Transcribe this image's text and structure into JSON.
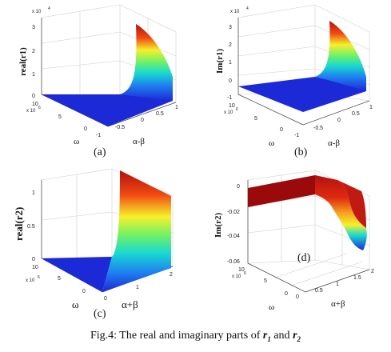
{
  "figure": {
    "caption": {
      "prefix": "Fig.4: The real and imaginary parts of ",
      "r1_main": "r",
      "r1_sub": "1",
      "join": " and ",
      "r2_main": "r",
      "r2_sub": "2"
    },
    "colors": {
      "surface_low": "#1b2ad6",
      "surface_mid": "#19d9d0",
      "surface_mid2": "#f6f02a",
      "surface_high": "#b4100f",
      "flat_dark_red": "#9a0a0a"
    },
    "panels": [
      {
        "label": "(a)",
        "zlabel": "real(r1)",
        "ylabel": "ω",
        "xlabel": "α-β",
        "zticks": [
          "3",
          "2",
          "1",
          "0"
        ],
        "zexp": "x 10",
        "zexp_power": "4",
        "yexp": "x 10",
        "yexp_power": "6",
        "yticks": [
          "10",
          "5",
          "0"
        ],
        "xticks": [
          "-1",
          "-0.5",
          "0",
          "0.5",
          "1"
        ]
      },
      {
        "label": "(b)",
        "zlabel": "Im(r1)",
        "ylabel": "ω",
        "xlabel": "α-β",
        "zticks": [
          "3",
          "2",
          "1",
          "0",
          "-1"
        ],
        "zexp": "x 10",
        "zexp_power": "4",
        "yexp": "x 10",
        "yexp_power": "6",
        "yticks": [
          "10",
          "5",
          "0"
        ],
        "xticks": [
          "-1",
          "-0.5",
          "0",
          "0.5",
          "1"
        ]
      },
      {
        "label": "(c)",
        "zlabel": "real(r2)",
        "ylabel": "ω",
        "xlabel": "α+β",
        "zticks": [
          "1",
          "0.5",
          "0"
        ],
        "yexp": "x 10",
        "yexp_power": "6",
        "yticks": [
          "10",
          "5",
          "0"
        ],
        "xticks": [
          "0",
          "1",
          "2"
        ]
      },
      {
        "label": "(d)",
        "zlabel": "Im(r2)",
        "ylabel": "ω",
        "xlabel": "α+β",
        "zticks": [
          "0",
          "-0.02",
          "-0.04",
          "-0.06"
        ],
        "yexp": "x 10",
        "yexp_power": "6",
        "yticks": [
          "10",
          "5",
          "0"
        ],
        "xticks": [
          "0",
          "0.5",
          "1",
          "1.5",
          "2"
        ]
      }
    ]
  }
}
